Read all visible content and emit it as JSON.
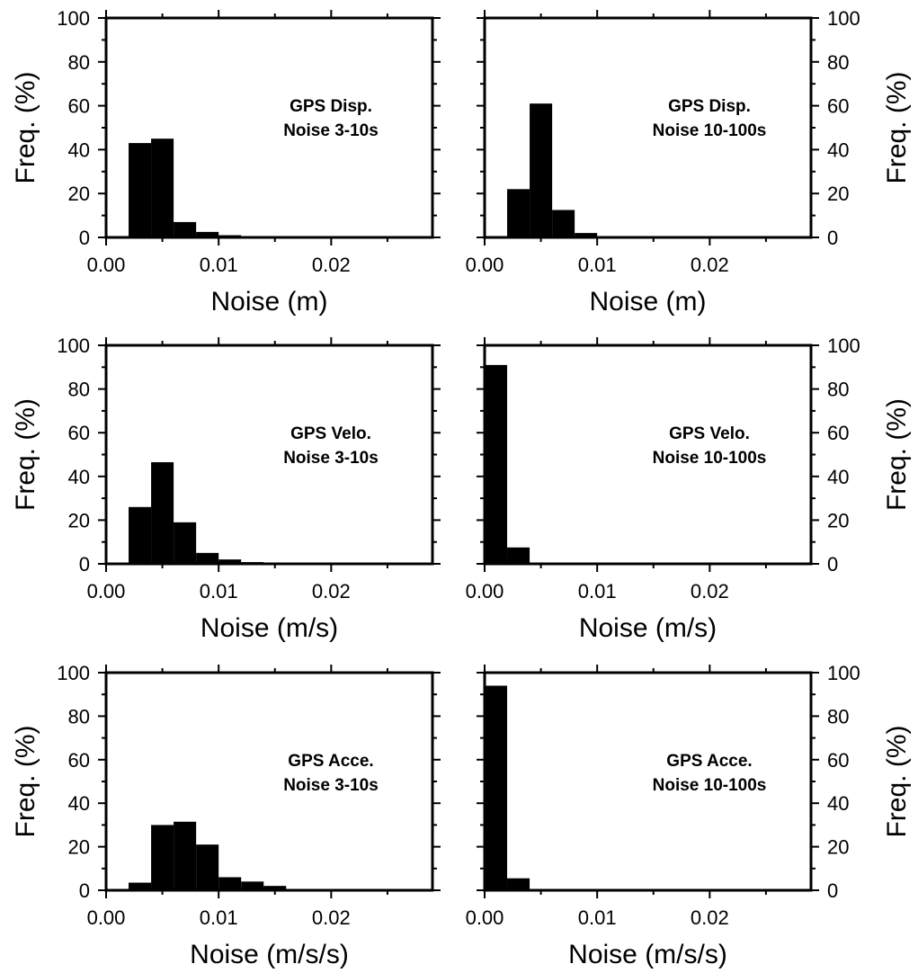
{
  "chart_data": [
    {
      "type": "bar",
      "bin_width": 0.002,
      "bin_starts": [
        0.0,
        0.002,
        0.004,
        0.006,
        0.008,
        0.01,
        0.012,
        0.014,
        0.016,
        0.018,
        0.02,
        0.022,
        0.024,
        0.026
      ],
      "values": [
        0,
        43,
        45,
        7,
        2.5,
        1,
        0.3,
        0.2,
        0.1,
        0.1,
        0.1,
        0,
        0,
        0
      ],
      "annotation": [
        "GPS Disp.",
        "Noise 3-10s"
      ],
      "xlabel": "Noise (m)",
      "ylabel": "Freq. (%)",
      "xlim": [
        0,
        0.029
      ],
      "ylim": [
        0,
        100
      ],
      "xticks": [
        "0.00",
        "0.01",
        "0.02"
      ],
      "yticks": [
        "0",
        "20",
        "40",
        "60",
        "80",
        "100"
      ],
      "yaxis_side": "left"
    },
    {
      "type": "bar",
      "bin_width": 0.002,
      "bin_starts": [
        0.0,
        0.002,
        0.004,
        0.006,
        0.008,
        0.01,
        0.012,
        0.014,
        0.016,
        0.018,
        0.02,
        0.022,
        0.024,
        0.026
      ],
      "values": [
        0,
        22,
        61,
        12.5,
        2,
        0.3,
        0,
        0,
        0,
        0,
        0,
        0,
        0,
        0
      ],
      "annotation": [
        "GPS Disp.",
        "Noise 10-100s"
      ],
      "xlabel": "Noise (m)",
      "ylabel": "Freq. (%)",
      "xlim": [
        0,
        0.029
      ],
      "ylim": [
        0,
        100
      ],
      "xticks": [
        "0.00",
        "0.01",
        "0.02"
      ],
      "yticks": [
        "0",
        "20",
        "40",
        "60",
        "80",
        "100"
      ],
      "yaxis_side": "right"
    },
    {
      "type": "bar",
      "bin_width": 0.002,
      "bin_starts": [
        0.0,
        0.002,
        0.004,
        0.006,
        0.008,
        0.01,
        0.012,
        0.014,
        0.016,
        0.018,
        0.02,
        0.022,
        0.024,
        0.026
      ],
      "values": [
        0,
        26,
        46.5,
        19,
        5,
        2,
        0.8,
        0.3,
        0.1,
        0.1,
        0,
        0,
        0,
        0
      ],
      "annotation": [
        "GPS Velo.",
        "Noise 3-10s"
      ],
      "xlabel": "Noise (m/s)",
      "ylabel": "Freq. (%)",
      "xlim": [
        0,
        0.029
      ],
      "ylim": [
        0,
        100
      ],
      "xticks": [
        "0.00",
        "0.01",
        "0.02"
      ],
      "yticks": [
        "0",
        "20",
        "40",
        "60",
        "80",
        "100"
      ],
      "yaxis_side": "left"
    },
    {
      "type": "bar",
      "bin_width": 0.002,
      "bin_starts": [
        0.0,
        0.002,
        0.004,
        0.006,
        0.008,
        0.01,
        0.012,
        0.014,
        0.016,
        0.018,
        0.02,
        0.022,
        0.024,
        0.026
      ],
      "values": [
        91,
        7.5,
        0.5,
        0.2,
        0,
        0,
        0,
        0,
        0,
        0,
        0,
        0,
        0,
        0
      ],
      "annotation": [
        "GPS Velo.",
        "Noise 10-100s"
      ],
      "xlabel": "Noise (m/s)",
      "ylabel": "Freq. (%)",
      "xlim": [
        0,
        0.029
      ],
      "ylim": [
        0,
        100
      ],
      "xticks": [
        "0.00",
        "0.01",
        "0.02"
      ],
      "yticks": [
        "0",
        "20",
        "40",
        "60",
        "80",
        "100"
      ],
      "yaxis_side": "right"
    },
    {
      "type": "bar",
      "bin_width": 0.002,
      "bin_starts": [
        0.0,
        0.002,
        0.004,
        0.006,
        0.008,
        0.01,
        0.012,
        0.014,
        0.016,
        0.018,
        0.02,
        0.022,
        0.024,
        0.026
      ],
      "values": [
        0.5,
        3.5,
        30,
        31.5,
        21,
        6,
        4,
        2,
        0.5,
        0.3,
        0.1,
        0,
        0,
        0
      ],
      "annotation": [
        "GPS Acce.",
        "Noise 3-10s"
      ],
      "xlabel": "Noise (m/s/s)",
      "ylabel": "Freq. (%)",
      "xlim": [
        0,
        0.029
      ],
      "ylim": [
        0,
        100
      ],
      "xticks": [
        "0.00",
        "0.01",
        "0.02"
      ],
      "yticks": [
        "0",
        "20",
        "40",
        "60",
        "80",
        "100"
      ],
      "yaxis_side": "left"
    },
    {
      "type": "bar",
      "bin_width": 0.002,
      "bin_starts": [
        0.0,
        0.002,
        0.004,
        0.006,
        0.008,
        0.01,
        0.012,
        0.014,
        0.016,
        0.018,
        0.02,
        0.022,
        0.024,
        0.026
      ],
      "values": [
        94,
        5.5,
        0.3,
        0.1,
        0,
        0,
        0,
        0,
        0,
        0,
        0,
        0,
        0,
        0
      ],
      "annotation": [
        "GPS Acce.",
        "Noise 10-100s"
      ],
      "xlabel": "Noise (m/s/s)",
      "ylabel": "Freq. (%)",
      "xlim": [
        0,
        0.029
      ],
      "ylim": [
        0,
        100
      ],
      "xticks": [
        "0.00",
        "0.01",
        "0.02"
      ],
      "yticks": [
        "0",
        "20",
        "40",
        "60",
        "80",
        "100"
      ],
      "yaxis_side": "right"
    }
  ],
  "colors": {
    "bars": "#000000",
    "frame": "#000000",
    "background": "#ffffff"
  }
}
